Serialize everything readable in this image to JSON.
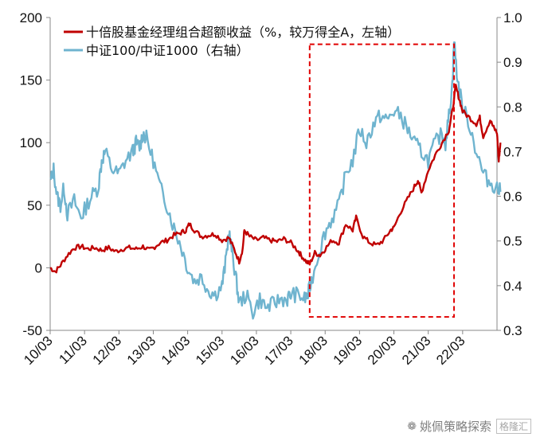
{
  "chart_data": {
    "type": "line",
    "x_ticks": [
      "10/03",
      "11/03",
      "12/03",
      "13/03",
      "14/03",
      "15/03",
      "16/03",
      "17/03",
      "18/03",
      "19/03",
      "20/03",
      "21/03",
      "22/03"
    ],
    "left_axis": {
      "ticks": [
        200,
        150,
        100,
        50,
        0,
        -50
      ],
      "ylim": [
        -50,
        200
      ]
    },
    "right_axis": {
      "ticks": [
        1.0,
        0.9,
        0.8,
        0.7,
        0.6,
        0.5,
        0.4,
        0.3
      ],
      "ylim": [
        0.3,
        1.0
      ]
    },
    "series": [
      {
        "name": "十倍股基金经理组合超额收益（%，较万得全A，左轴）",
        "axis": "left",
        "color": "#c00000",
        "points": [
          [
            0.0,
            0
          ],
          [
            0.15,
            -3
          ],
          [
            0.3,
            2
          ],
          [
            0.5,
            10
          ],
          [
            0.7,
            16
          ],
          [
            0.9,
            17
          ],
          [
            1.1,
            15
          ],
          [
            1.3,
            16
          ],
          [
            1.5,
            14
          ],
          [
            1.7,
            16
          ],
          [
            1.9,
            13
          ],
          [
            2.1,
            15
          ],
          [
            2.3,
            16
          ],
          [
            2.5,
            15
          ],
          [
            2.7,
            17
          ],
          [
            2.9,
            14
          ],
          [
            3.0,
            16
          ],
          [
            3.2,
            20
          ],
          [
            3.4,
            22
          ],
          [
            3.6,
            26
          ],
          [
            3.8,
            28
          ],
          [
            3.95,
            30
          ],
          [
            4.05,
            35
          ],
          [
            4.2,
            30
          ],
          [
            4.4,
            25
          ],
          [
            4.6,
            26
          ],
          [
            4.8,
            27
          ],
          [
            5.0,
            22
          ],
          [
            5.2,
            24
          ],
          [
            5.35,
            15
          ],
          [
            5.5,
            5
          ],
          [
            5.6,
            15
          ],
          [
            5.65,
            30
          ],
          [
            5.8,
            25
          ],
          [
            6.0,
            22
          ],
          [
            6.2,
            24
          ],
          [
            6.4,
            22
          ],
          [
            6.6,
            21
          ],
          [
            6.8,
            23
          ],
          [
            7.0,
            20
          ],
          [
            7.2,
            14
          ],
          [
            7.3,
            10
          ],
          [
            7.45,
            5
          ],
          [
            7.55,
            3
          ],
          [
            7.7,
            12
          ],
          [
            7.85,
            10
          ],
          [
            8.0,
            15
          ],
          [
            8.2,
            22
          ],
          [
            8.4,
            20
          ],
          [
            8.6,
            35
          ],
          [
            8.8,
            30
          ],
          [
            8.9,
            40
          ],
          [
            9.1,
            25
          ],
          [
            9.3,
            20
          ],
          [
            9.5,
            18
          ],
          [
            9.7,
            22
          ],
          [
            9.9,
            30
          ],
          [
            10.0,
            32
          ],
          [
            10.2,
            45
          ],
          [
            10.4,
            55
          ],
          [
            10.6,
            65
          ],
          [
            10.7,
            70
          ],
          [
            10.8,
            60
          ],
          [
            11.0,
            78
          ],
          [
            11.2,
            90
          ],
          [
            11.4,
            100
          ],
          [
            11.6,
            110
          ],
          [
            11.7,
            125
          ],
          [
            11.8,
            145
          ],
          [
            11.9,
            135
          ],
          [
            12.0,
            125
          ],
          [
            12.2,
            120
          ],
          [
            12.4,
            115
          ],
          [
            12.5,
            120
          ],
          [
            12.6,
            105
          ],
          [
            12.8,
            118
          ],
          [
            12.9,
            112
          ],
          [
            13.0,
            108
          ],
          [
            13.05,
            85
          ],
          [
            13.1,
            100
          ]
        ]
      },
      {
        "name": "中证100/中证1000（右轴）",
        "axis": "right",
        "color": "#6fb4cf",
        "points": [
          [
            0.0,
            0.63
          ],
          [
            0.1,
            0.66
          ],
          [
            0.2,
            0.6
          ],
          [
            0.3,
            0.58
          ],
          [
            0.4,
            0.62
          ],
          [
            0.5,
            0.56
          ],
          [
            0.7,
            0.59
          ],
          [
            0.9,
            0.55
          ],
          [
            1.0,
            0.57
          ],
          [
            1.2,
            0.6
          ],
          [
            1.4,
            0.62
          ],
          [
            1.5,
            0.68
          ],
          [
            1.6,
            0.7
          ],
          [
            1.8,
            0.66
          ],
          [
            2.0,
            0.65
          ],
          [
            2.2,
            0.68
          ],
          [
            2.4,
            0.7
          ],
          [
            2.5,
            0.72
          ],
          [
            2.6,
            0.71
          ],
          [
            2.7,
            0.74
          ],
          [
            2.8,
            0.73
          ],
          [
            3.0,
            0.68
          ],
          [
            3.2,
            0.62
          ],
          [
            3.4,
            0.58
          ],
          [
            3.6,
            0.53
          ],
          [
            3.8,
            0.49
          ],
          [
            4.0,
            0.44
          ],
          [
            4.2,
            0.41
          ],
          [
            4.4,
            0.42
          ],
          [
            4.6,
            0.39
          ],
          [
            4.8,
            0.38
          ],
          [
            5.0,
            0.4
          ],
          [
            5.1,
            0.45
          ],
          [
            5.2,
            0.52
          ],
          [
            5.3,
            0.47
          ],
          [
            5.4,
            0.42
          ],
          [
            5.5,
            0.36
          ],
          [
            5.7,
            0.38
          ],
          [
            5.9,
            0.34
          ],
          [
            6.1,
            0.37
          ],
          [
            6.3,
            0.35
          ],
          [
            6.5,
            0.36
          ],
          [
            6.7,
            0.37
          ],
          [
            6.9,
            0.37
          ],
          [
            7.0,
            0.38
          ],
          [
            7.2,
            0.38
          ],
          [
            7.4,
            0.37
          ],
          [
            7.5,
            0.38
          ],
          [
            7.6,
            0.41
          ],
          [
            7.8,
            0.47
          ],
          [
            8.0,
            0.52
          ],
          [
            8.2,
            0.55
          ],
          [
            8.4,
            0.58
          ],
          [
            8.6,
            0.65
          ],
          [
            8.8,
            0.68
          ],
          [
            9.0,
            0.75
          ],
          [
            9.2,
            0.72
          ],
          [
            9.4,
            0.76
          ],
          [
            9.6,
            0.78
          ],
          [
            9.8,
            0.77
          ],
          [
            10.0,
            0.79
          ],
          [
            10.2,
            0.78
          ],
          [
            10.4,
            0.75
          ],
          [
            10.6,
            0.72
          ],
          [
            10.8,
            0.7
          ],
          [
            11.0,
            0.68
          ],
          [
            11.2,
            0.72
          ],
          [
            11.4,
            0.74
          ],
          [
            11.5,
            0.72
          ],
          [
            11.6,
            0.78
          ],
          [
            11.7,
            0.85
          ],
          [
            11.75,
            0.95
          ],
          [
            11.85,
            0.86
          ],
          [
            12.0,
            0.8
          ],
          [
            12.2,
            0.76
          ],
          [
            12.4,
            0.7
          ],
          [
            12.6,
            0.65
          ],
          [
            12.8,
            0.63
          ],
          [
            13.0,
            0.62
          ],
          [
            13.1,
            0.61
          ]
        ]
      }
    ],
    "highlight_box": {
      "x_from": 7.55,
      "x_to": 11.75,
      "y_top": 0.94,
      "y_bottom": 0.33,
      "axis": "right",
      "color": "#e00000"
    },
    "legend": [
      "十倍股基金经理组合超额收益（%，较万得全A，左轴）",
      "中证100/中证1000（右轴）"
    ]
  },
  "watermark": {
    "text": "姚佩策略探索",
    "logo_text": "格隆汇"
  }
}
